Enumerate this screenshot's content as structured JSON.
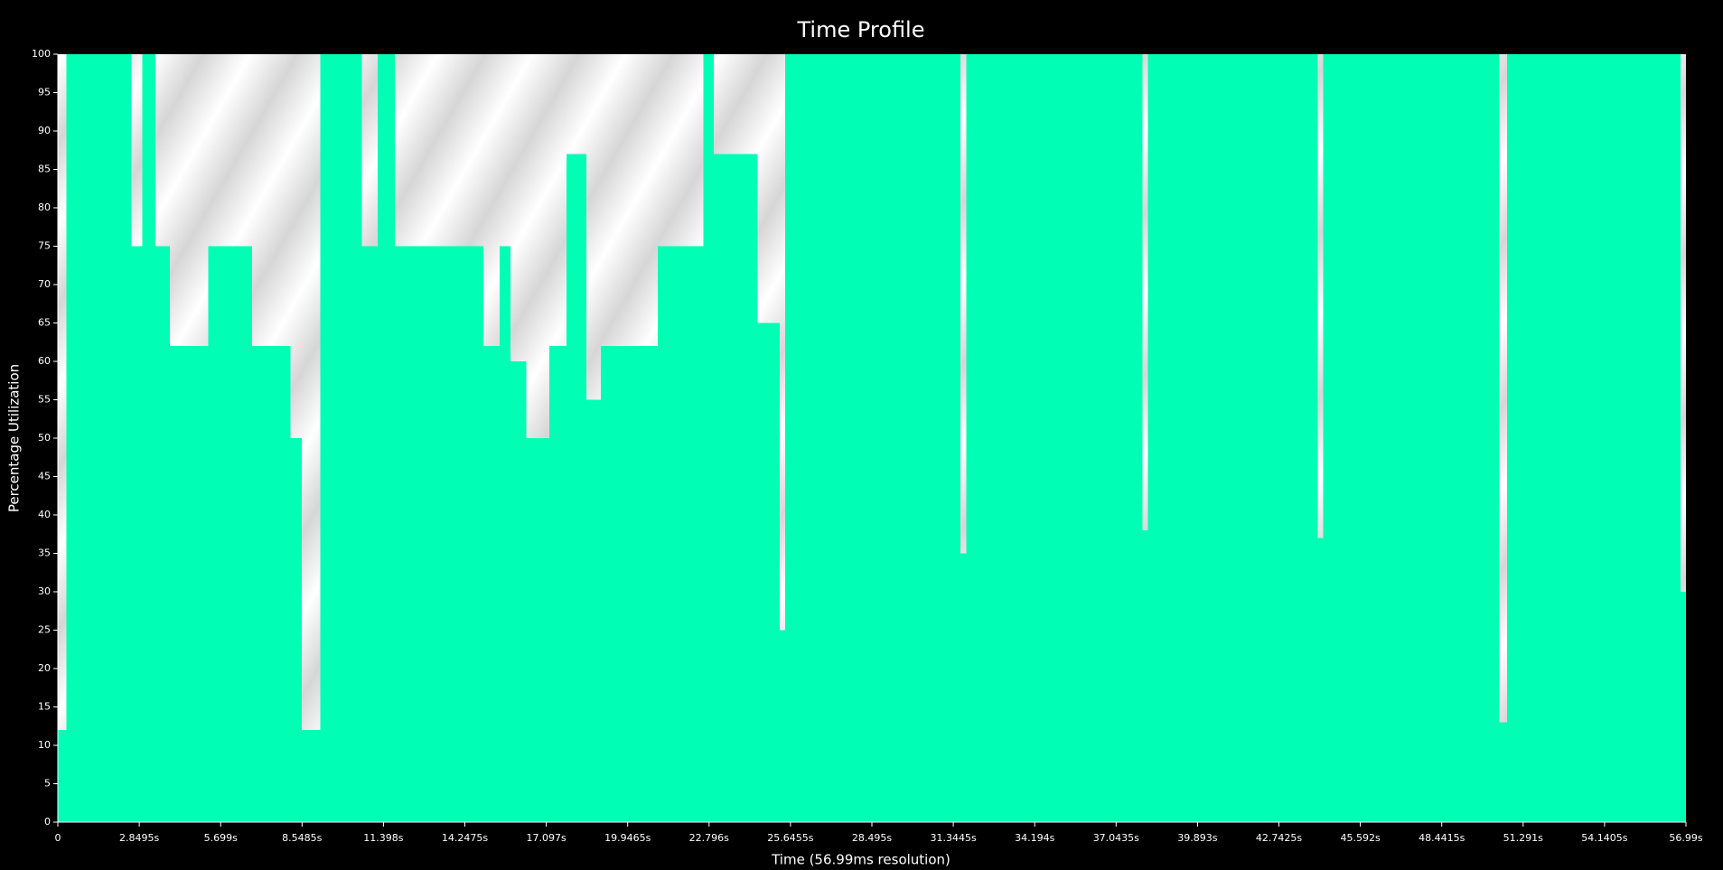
{
  "chart_data": {
    "type": "step-area",
    "title": "Time Profile",
    "x_label": "Time (56.99ms resolution)",
    "y_label": "Percentage Utilization",
    "color": "#00ffb4",
    "x": [
      0,
      0.3,
      2.58,
      2.96,
      3.42,
      3.92,
      5.27,
      6.8,
      8.15,
      8.54,
      9.19,
      10.65,
      11.2,
      11.8,
      14.9,
      15.46,
      15.85,
      16.4,
      17.2,
      17.8,
      18.5,
      19.0,
      21.0,
      22.6,
      22.96,
      24.5,
      25.27,
      25.46,
      31.6,
      31.8,
      37.96,
      38.15,
      44.1,
      44.3,
      50.46,
      50.73,
      56.8
    ],
    "values": [
      12,
      100,
      75,
      100,
      75,
      62,
      75,
      62,
      50,
      12,
      100,
      75,
      100,
      75,
      62,
      75,
      60,
      50,
      62,
      87,
      55,
      62,
      75,
      100,
      87,
      65,
      25,
      100,
      35,
      100,
      38,
      100,
      37,
      100,
      13,
      100,
      30
    ],
    "xlim": [
      0,
      56.99
    ],
    "ylim": [
      0,
      100
    ],
    "xticks": [
      0,
      {
        "value": 2.8495,
        "label": "2.8495s"
      },
      {
        "value": 5.699,
        "label": "5.699s"
      },
      {
        "value": 8.5485,
        "label": "8.5485s"
      },
      {
        "value": 11.398,
        "label": "11.398s"
      },
      {
        "value": 14.2475,
        "label": "14.2475s"
      },
      {
        "value": 17.097,
        "label": "17.097s"
      },
      {
        "value": 19.9465,
        "label": "19.9465s"
      },
      {
        "value": 22.796,
        "label": "22.796s"
      },
      {
        "value": 25.6455,
        "label": "25.6455s"
      },
      {
        "value": 28.495,
        "label": "28.495s"
      },
      {
        "value": 31.3445,
        "label": "31.3445s"
      },
      {
        "value": 34.194,
        "label": "34.194s"
      },
      {
        "value": 37.0435,
        "label": "37.0435s"
      },
      {
        "value": 39.893,
        "label": "39.893s"
      },
      {
        "value": 42.7425,
        "label": "42.7425s"
      },
      {
        "value": 45.592,
        "label": "45.592s"
      },
      {
        "value": 48.4415,
        "label": "48.4415s"
      },
      {
        "value": 51.291,
        "label": "51.291s"
      },
      {
        "value": 54.1405,
        "label": "54.1405s"
      },
      {
        "value": 56.99,
        "label": "56.99s"
      }
    ],
    "yticks": [
      0,
      5,
      10,
      15,
      20,
      25,
      30,
      35,
      40,
      45,
      50,
      55,
      60,
      65,
      70,
      75,
      80,
      85,
      90,
      95,
      100
    ]
  }
}
